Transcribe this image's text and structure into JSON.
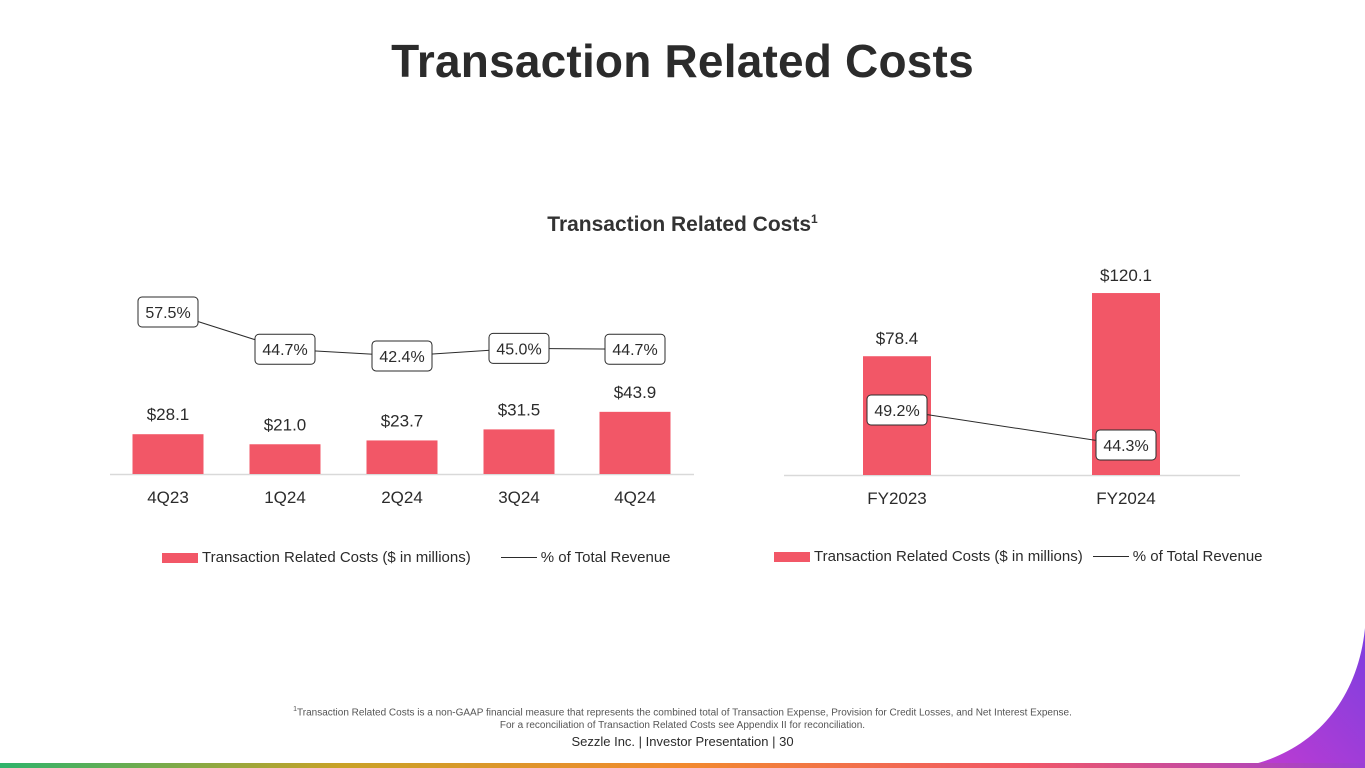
{
  "page": {
    "title": "Transaction Related Costs",
    "chart_heading": "Transaction Related Costs",
    "chart_heading_sup": "1",
    "footnote_sup": "1",
    "footnote_line1": "Transaction Related Costs is a non-GAAP financial measure that represents the combined total of Transaction Expense, Provision for Credit Losses, and Net Interest Expense.",
    "footnote_line2": "For a reconciliation of Transaction Related Costs see Appendix II for reconciliation.",
    "footer": "Sezzle Inc. | Investor Presentation | 30"
  },
  "colors": {
    "bar": "#F25767",
    "line": "#2b2b2b",
    "axis": "#d9d9d9",
    "bottom_bar": [
      "#2fb36b",
      "#c9a227",
      "#f28a2e",
      "#f25767",
      "#9b3fd6"
    ],
    "corner": [
      "#c53bd0",
      "#7c3fe0"
    ]
  },
  "legend": {
    "bar_label": "Transaction Related Costs ($ in millions)",
    "line_label": "% of Total Revenue"
  },
  "chart_data": [
    {
      "type": "bar",
      "categories": [
        "4Q23",
        "1Q24",
        "2Q24",
        "3Q24",
        "4Q24"
      ],
      "series": [
        {
          "name": "Transaction Related Costs ($ in millions)",
          "type": "bar",
          "values": [
            28.1,
            21.0,
            23.7,
            31.5,
            43.9
          ],
          "labels": [
            "$28.1",
            "$21.0",
            "$23.7",
            "$31.5",
            "$43.9"
          ]
        },
        {
          "name": "% of Total Revenue",
          "type": "line",
          "values": [
            57.5,
            44.7,
            42.4,
            45.0,
            44.7
          ],
          "labels": [
            "57.5%",
            "44.7%",
            "42.4%",
            "45.0%",
            "44.7%"
          ]
        }
      ],
      "legend_position": "bottom"
    },
    {
      "type": "bar",
      "categories": [
        "FY2023",
        "FY2024"
      ],
      "series": [
        {
          "name": "Transaction Related Costs ($ in millions)",
          "type": "bar",
          "values": [
            78.4,
            120.1
          ],
          "labels": [
            "$78.4",
            "$120.1"
          ]
        },
        {
          "name": "% of Total Revenue",
          "type": "line",
          "values": [
            49.2,
            44.3
          ],
          "labels": [
            "49.2%",
            "44.3%"
          ]
        }
      ],
      "legend_position": "bottom"
    }
  ]
}
